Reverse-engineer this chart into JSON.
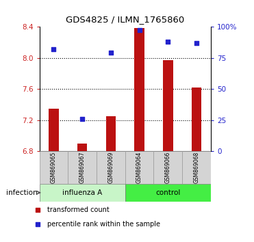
{
  "title": "GDS4825 / ILMN_1765860",
  "samples": [
    "GSM869065",
    "GSM869067",
    "GSM869069",
    "GSM869064",
    "GSM869066",
    "GSM869068"
  ],
  "group_colors": [
    "#c8f5c8",
    "#44ee44"
  ],
  "red_values": [
    7.35,
    6.9,
    7.25,
    8.38,
    7.97,
    7.62
  ],
  "blue_values_pct": [
    82,
    26,
    79,
    97,
    88,
    87
  ],
  "ylim_left": [
    6.8,
    8.4
  ],
  "ylim_right": [
    0,
    100
  ],
  "yticks_left": [
    6.8,
    7.2,
    7.6,
    8.0,
    8.4
  ],
  "yticks_right": [
    0,
    25,
    50,
    75,
    100
  ],
  "ytick_labels_right": [
    "0",
    "25",
    "50",
    "75",
    "100%"
  ],
  "bar_color": "#bb1111",
  "dot_color": "#2222cc",
  "bar_bottom": 6.8,
  "infection_label": "infection",
  "legend_red": "transformed count",
  "legend_blue": "percentile rank within the sample",
  "background_color": "#ffffff",
  "tick_label_color_left": "#cc2222",
  "tick_label_color_right": "#2222cc",
  "bar_width": 0.35
}
